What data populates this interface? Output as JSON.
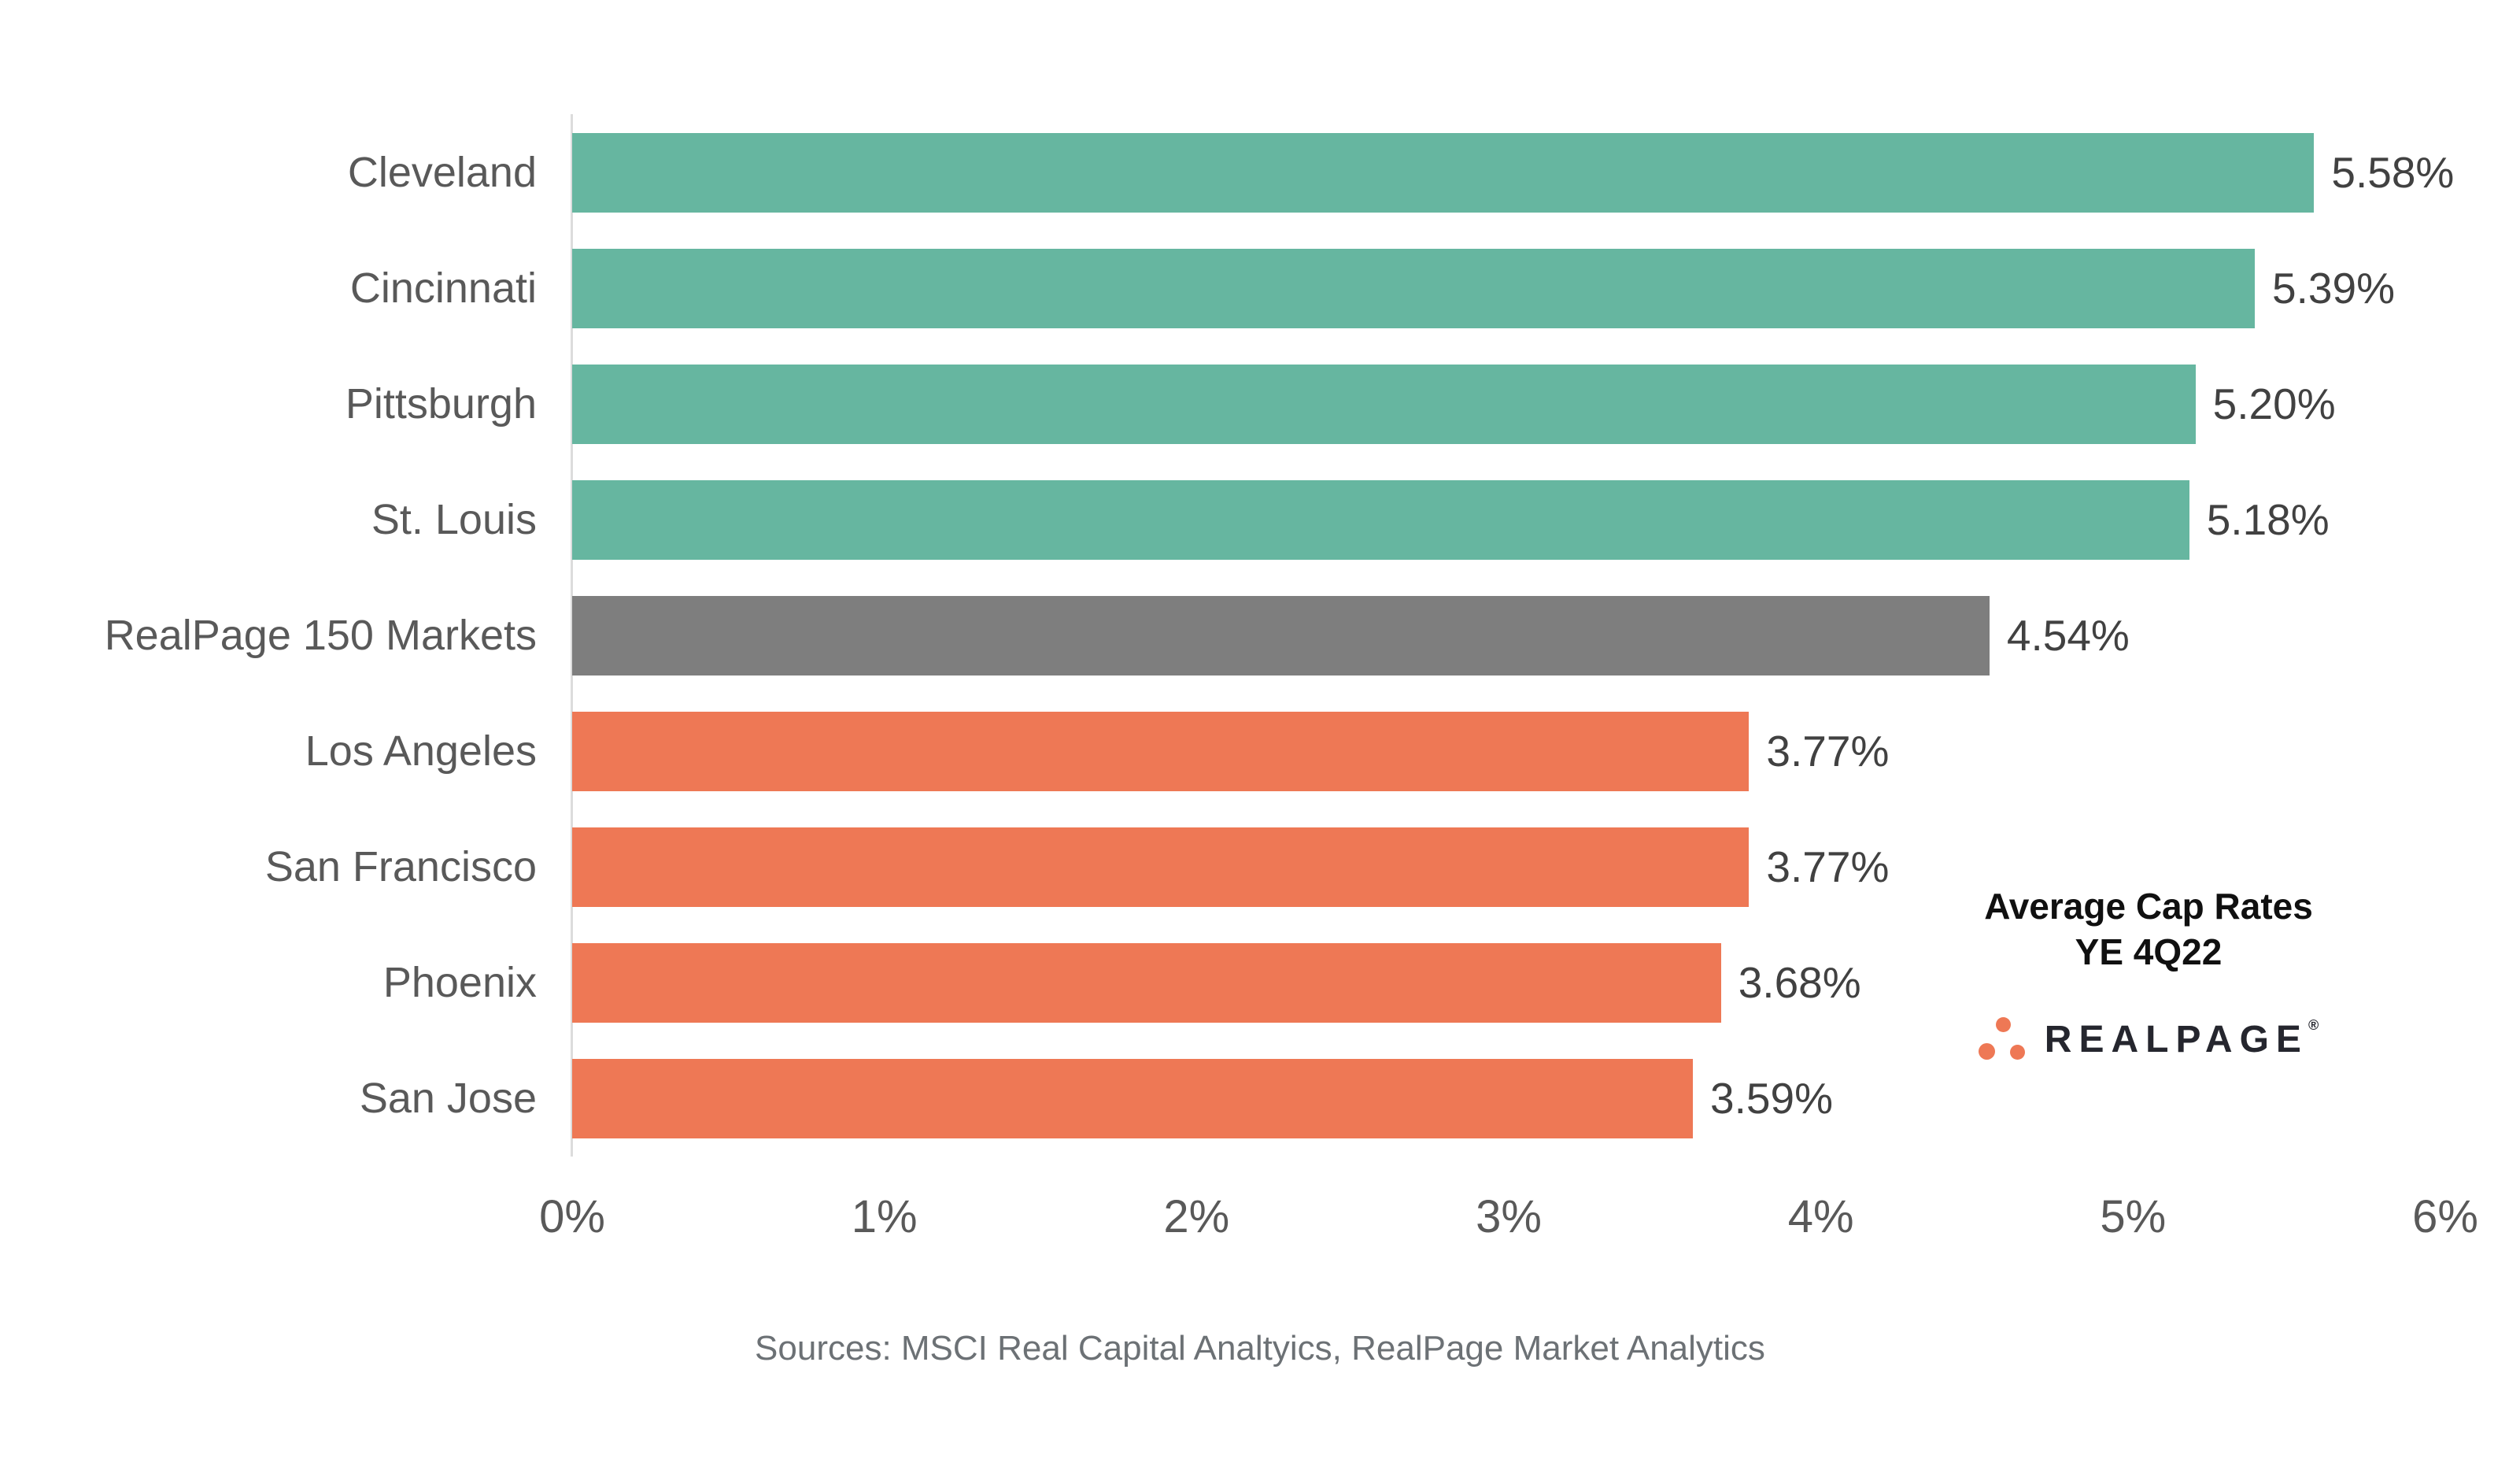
{
  "chart_data": {
    "type": "bar",
    "orientation": "horizontal",
    "title": "Average Cap Rates YE 4Q22",
    "categories": [
      "Cleveland",
      "Cincinnati",
      "Pittsburgh",
      "St. Louis",
      "RealPage 150 Markets",
      "Los Angeles",
      "San Francisco",
      "Phoenix",
      "San Jose"
    ],
    "values": [
      5.58,
      5.39,
      5.2,
      5.18,
      4.54,
      3.77,
      3.77,
      3.68,
      3.59
    ],
    "value_labels": [
      "5.58%",
      "5.39%",
      "5.20%",
      "5.18%",
      "4.54%",
      "3.77%",
      "3.77%",
      "3.68%",
      "3.59%"
    ],
    "bar_color_keys": [
      "green",
      "green",
      "green",
      "green",
      "gray",
      "orange",
      "orange",
      "orange",
      "orange"
    ],
    "xlim": [
      0,
      6
    ],
    "x_ticks": [
      "0%",
      "1%",
      "2%",
      "3%",
      "4%",
      "5%",
      "6%"
    ],
    "grid": false,
    "legend": "none",
    "value_label_position": "end-of-bar"
  },
  "colors": {
    "green": "#66b6a0",
    "gray": "#7e7e7e",
    "orange": "#ee7855",
    "axis_line": "#dcdcdc",
    "category_label": "#595959",
    "value_label": "#414141",
    "tick_label": "#595959",
    "annotation_text": "#101010",
    "source_text": "#6c7175",
    "logo_text": "#25262e",
    "logo_dot": "#ee7855"
  },
  "annotation": {
    "line1": "Average Cap Rates",
    "line2": "YE 4Q22"
  },
  "logo": {
    "text": "REALPAGE",
    "registered_mark": "®"
  },
  "footer": {
    "sources": "Sources: MSCI Real Capital Analtyics, RealPage Market Analytics"
  }
}
